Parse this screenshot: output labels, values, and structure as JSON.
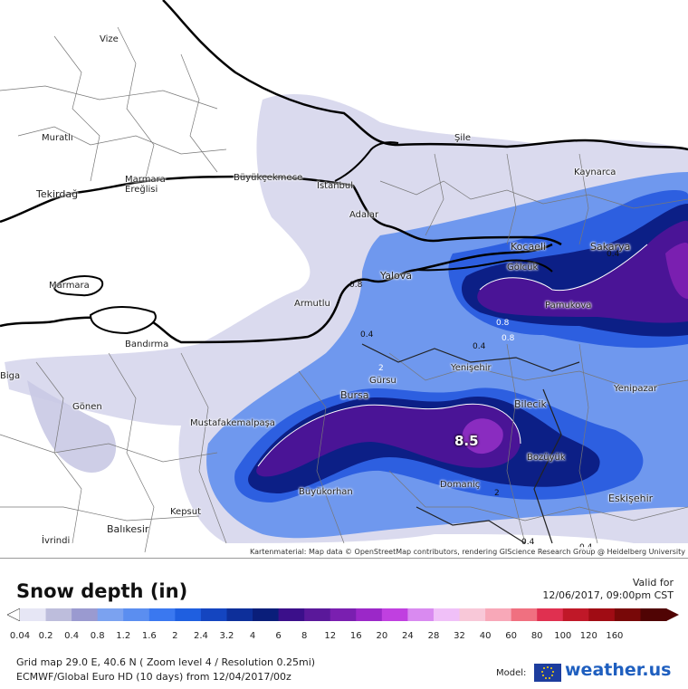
{
  "map": {
    "peak_label": "8.5",
    "cities": [
      {
        "name": "Vize"
      },
      {
        "name": "Muratlı"
      },
      {
        "name": "Marmara Ereğlisi"
      },
      {
        "name": "Büyükçekmece"
      },
      {
        "name": "İstanbul"
      },
      {
        "name": "Şile"
      },
      {
        "name": "Kaynarca"
      },
      {
        "name": "Tekirdağ"
      },
      {
        "name": "Adalar"
      },
      {
        "name": "Kocaeli"
      },
      {
        "name": "Sakarya"
      },
      {
        "name": "Gölcük"
      },
      {
        "name": "Marmara"
      },
      {
        "name": "Yalova"
      },
      {
        "name": "Armutlu"
      },
      {
        "name": "Pamukova"
      },
      {
        "name": "Bandırma"
      },
      {
        "name": "Yenişehir"
      },
      {
        "name": "Gürsu"
      },
      {
        "name": "Bursa"
      },
      {
        "name": "Bilecik"
      },
      {
        "name": "Yenipazar"
      },
      {
        "name": "Biga"
      },
      {
        "name": "Gönen"
      },
      {
        "name": "Mustafakemalpaşa"
      },
      {
        "name": "Bozüyük"
      },
      {
        "name": "Büyükorhan"
      },
      {
        "name": "Domaniç"
      },
      {
        "name": "Eskişehir"
      },
      {
        "name": "Kepsut"
      },
      {
        "name": "Balıkesir"
      },
      {
        "name": "İvrindi"
      }
    ],
    "contour_labels": [
      "0.8",
      "0.4",
      "0.4",
      "0.8",
      "0.4",
      "0.8",
      "2",
      "2",
      "0.4",
      "0.4"
    ],
    "attribution": "Kartenmaterial: Map data © OpenStreetMap contributors, rendering GIScience Research Group @ Heidelberg University"
  },
  "legend": {
    "title": "Snow depth (in)",
    "valid_label": "Valid for",
    "valid_time": "12/06/2017, 09:00pm CST",
    "ticks": [
      "0.04",
      "0.2",
      "0.4",
      "0.8",
      "1.2",
      "1.6",
      "2",
      "2.4",
      "3.2",
      "4",
      "6",
      "8",
      "12",
      "16",
      "20",
      "24",
      "28",
      "32",
      "40",
      "60",
      "80",
      "100",
      "120",
      "160"
    ],
    "colors": [
      "#e6e6f5",
      "#bdbddc",
      "#9a9ad0",
      "#7ba2f0",
      "#5b8ef0",
      "#3a78f0",
      "#1f5fe0",
      "#1445c0",
      "#0d2f9a",
      "#0a1e7a",
      "#3b0f8a",
      "#5a189a",
      "#7a1fb0",
      "#9b28c8",
      "#c040e0",
      "#d98af0",
      "#f0c0f8",
      "#f8c8d8",
      "#f8a8b8",
      "#f07080",
      "#e03050",
      "#c01828",
      "#a00c14",
      "#780808",
      "#500404"
    ],
    "grid_info": "Grid map 29.0 E, 40.6 N ( Zoom level 4 / Resolution 0.25mi)",
    "model_info": "ECMWF/Global Euro HD (10 days) from 12/04/2017/00z",
    "model_label": "Model:",
    "brand": "weather.us"
  }
}
